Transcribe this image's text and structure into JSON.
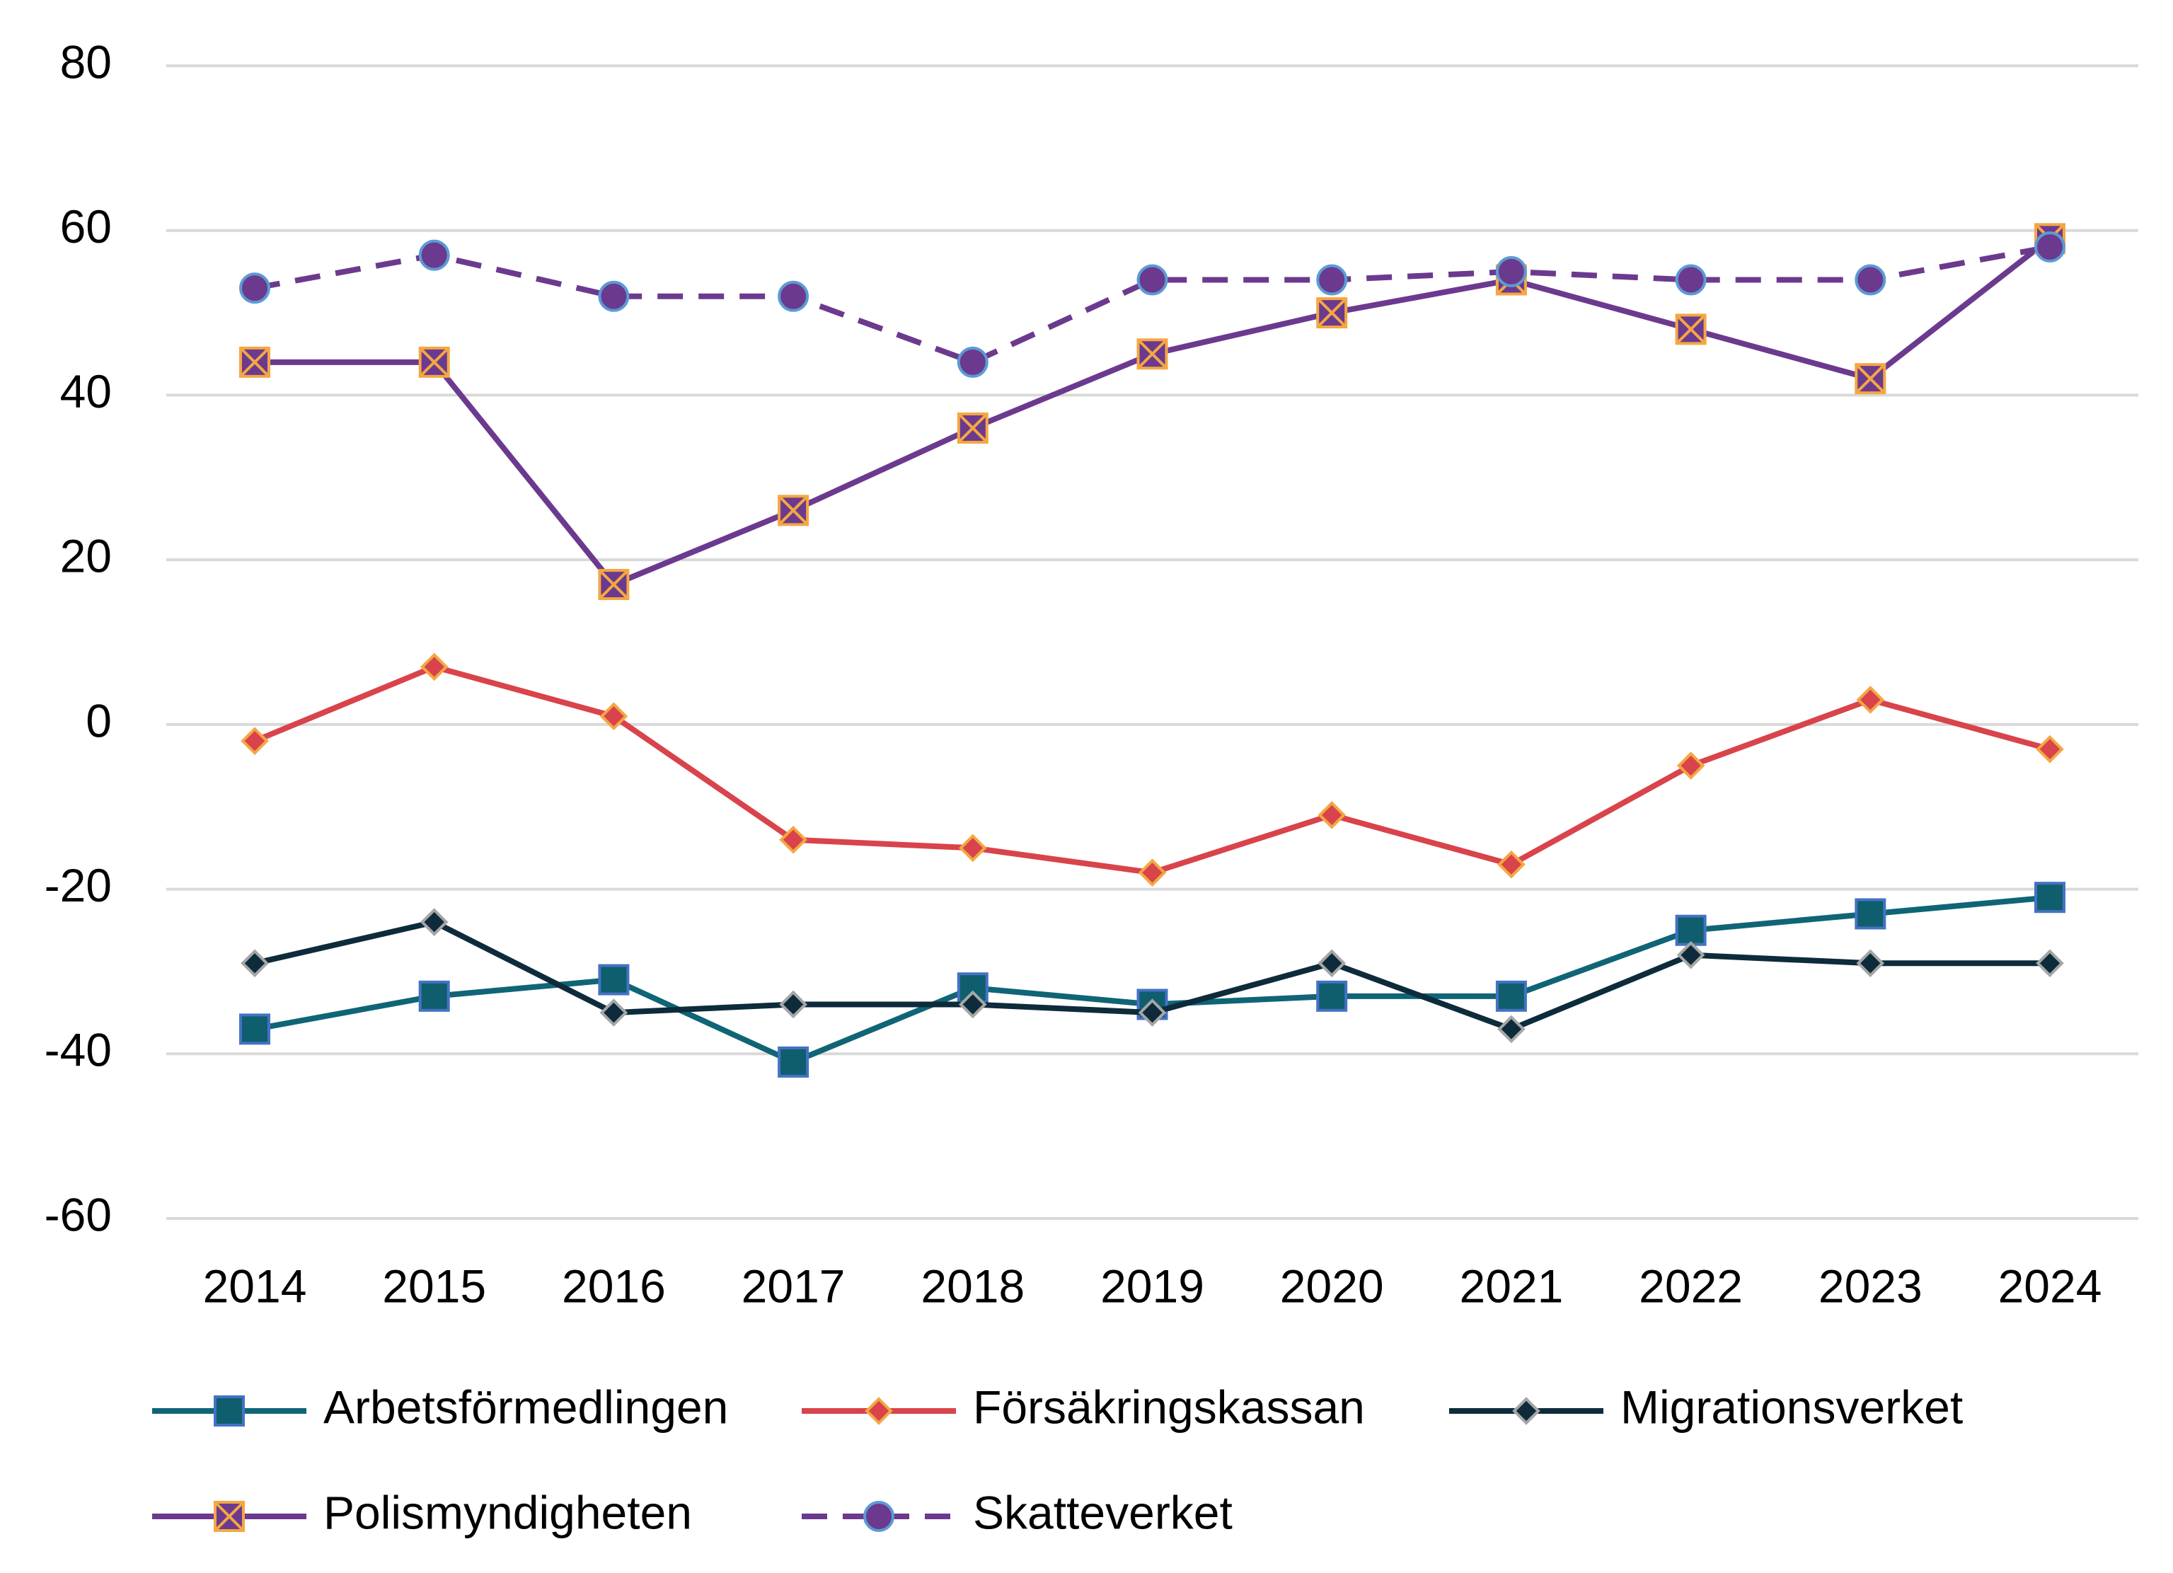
{
  "chart_data": {
    "type": "line",
    "categories": [
      "2014",
      "2015",
      "2016",
      "2017",
      "2018",
      "2019",
      "2020",
      "2021",
      "2022",
      "2023",
      "2024"
    ],
    "series": [
      {
        "name": "Arbetsförmedlingen",
        "color": "#0f6575",
        "marker": "square",
        "marker_fill": "#0f5e6e",
        "marker_stroke": "#4472c4",
        "dash": false,
        "values": [
          -37,
          -33,
          -31,
          -41,
          -32,
          -34,
          -33,
          -33,
          -25,
          -23,
          -21
        ]
      },
      {
        "name": "Försäkringskassan",
        "color": "#d9434b",
        "marker": "diamond",
        "marker_fill": "#d9434b",
        "marker_stroke": "#f4a742",
        "dash": false,
        "values": [
          -2,
          7,
          1,
          -14,
          -15,
          -18,
          -11,
          -17,
          -5,
          3,
          -3
        ]
      },
      {
        "name": "Migrationsverket",
        "color": "#0d2b3b",
        "marker": "diamond",
        "marker_fill": "#0d2b3b",
        "marker_stroke": "#a6a6a6",
        "dash": false,
        "values": [
          -29,
          -24,
          -35,
          -34,
          -34,
          -35,
          -29,
          -37,
          -28,
          -29,
          -29
        ]
      },
      {
        "name": "Polismyndigheten",
        "color": "#6b3a8e",
        "marker": "xsquare",
        "marker_fill": "#6b3a8e",
        "marker_stroke": "#f4a742",
        "dash": false,
        "values": [
          44,
          44,
          17,
          26,
          36,
          45,
          50,
          54,
          48,
          42,
          59
        ]
      },
      {
        "name": "Skatteverket",
        "color": "#6b3a8e",
        "marker": "circle",
        "marker_fill": "#6b3a8e",
        "marker_stroke": "#5b9bd5",
        "dash": true,
        "values": [
          53,
          57,
          52,
          52,
          44,
          54,
          54,
          55,
          54,
          54,
          58
        ]
      }
    ],
    "ylim": [
      -60,
      80
    ],
    "yticks": [
      -60,
      -40,
      -20,
      0,
      20,
      40,
      60,
      80
    ],
    "grid": true,
    "legend": "bottom"
  }
}
